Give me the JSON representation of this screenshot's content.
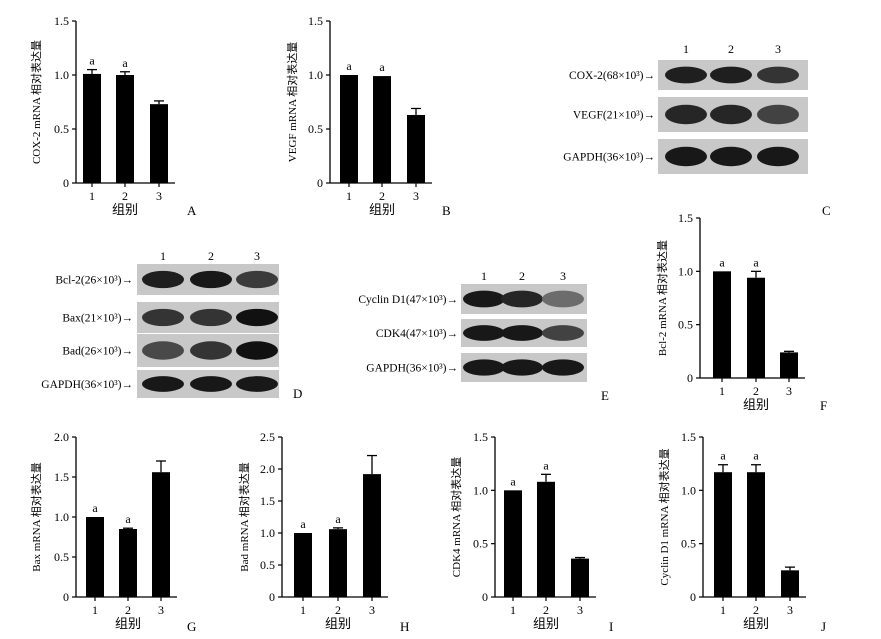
{
  "charts": [
    {
      "panel": "A",
      "type": "bar",
      "ylabel": "COX-2 mRNA 相对表达量",
      "xlabel": "组别",
      "categories": [
        "1",
        "2",
        "3"
      ],
      "values": [
        1.01,
        1.0,
        0.73
      ],
      "errors": [
        0.04,
        0.03,
        0.03
      ],
      "sig": [
        "a",
        "a",
        ""
      ],
      "ylim": [
        0,
        1.5
      ],
      "yticks": [
        "0",
        "0.5",
        "1.0",
        "1.5"
      ],
      "tickvals": [
        0,
        0.5,
        1.0,
        1.5
      ]
    },
    {
      "panel": "B",
      "type": "bar",
      "ylabel": "VEGF mRNA 相对表达量",
      "xlabel": "组别",
      "categories": [
        "1",
        "2",
        "3"
      ],
      "values": [
        1.0,
        0.99,
        0.63
      ],
      "errors": [
        0.0,
        0.0,
        0.06
      ],
      "sig": [
        "a",
        "a",
        ""
      ],
      "ylim": [
        0,
        1.5
      ],
      "yticks": [
        "0",
        "0.5",
        "1.0",
        "1.5"
      ],
      "tickvals": [
        0,
        0.5,
        1.0,
        1.5
      ]
    },
    {
      "panel": "F",
      "type": "bar",
      "ylabel": "Bcl-2 mRNA 相对表达量",
      "xlabel": "组别",
      "categories": [
        "1",
        "2",
        "3"
      ],
      "values": [
        1.0,
        0.94,
        0.24
      ],
      "errors": [
        0.0,
        0.06,
        0.01
      ],
      "sig": [
        "a",
        "a",
        ""
      ],
      "ylim": [
        0,
        1.5
      ],
      "yticks": [
        "0",
        "0.5",
        "1.0",
        "1.5"
      ],
      "tickvals": [
        0,
        0.5,
        1.0,
        1.5
      ]
    },
    {
      "panel": "G",
      "type": "bar",
      "ylabel": "Bax mRNA 相对表达量",
      "xlabel": "组别",
      "categories": [
        "1",
        "2",
        "3"
      ],
      "values": [
        1.0,
        0.85,
        1.56
      ],
      "errors": [
        0.0,
        0.01,
        0.14
      ],
      "sig": [
        "a",
        "a",
        ""
      ],
      "ylim": [
        0,
        2.0
      ],
      "yticks": [
        "0",
        "0.5",
        "1.0",
        "1.5",
        "2.0"
      ],
      "tickvals": [
        0,
        0.5,
        1.0,
        1.5,
        2.0
      ]
    },
    {
      "panel": "H",
      "type": "bar",
      "ylabel": "Bad mRNA 相对表达量",
      "xlabel": "组别",
      "categories": [
        "1",
        "2",
        "3"
      ],
      "values": [
        1.0,
        1.06,
        1.92
      ],
      "errors": [
        0.0,
        0.02,
        0.29
      ],
      "sig": [
        "a",
        "a",
        ""
      ],
      "ylim": [
        0,
        2.5
      ],
      "yticks": [
        "0",
        "0.5",
        "1.0",
        "1.5",
        "2.0",
        "2.5"
      ],
      "tickvals": [
        0,
        0.5,
        1.0,
        1.5,
        2.0,
        2.5
      ]
    },
    {
      "panel": "I",
      "type": "bar",
      "ylabel": "CDK4 mRNA 相对表达量",
      "xlabel": "组别",
      "categories": [
        "1",
        "2",
        "3"
      ],
      "values": [
        1.0,
        1.08,
        0.36
      ],
      "errors": [
        0.0,
        0.07,
        0.01
      ],
      "sig": [
        "a",
        "a",
        ""
      ],
      "ylim": [
        0,
        1.5
      ],
      "yticks": [
        "0",
        "0.5",
        "1.0",
        "1.5"
      ],
      "tickvals": [
        0,
        0.5,
        1.0,
        1.5
      ]
    },
    {
      "panel": "J",
      "type": "bar",
      "ylabel": "Cyclin D1 mRNA 相对表达量",
      "xlabel": "组别",
      "categories": [
        "1",
        "2",
        "3"
      ],
      "values": [
        1.17,
        1.17,
        0.25
      ],
      "errors": [
        0.07,
        0.07,
        0.03
      ],
      "sig": [
        "a",
        "a",
        ""
      ],
      "ylim": [
        0,
        1.5
      ],
      "yticks": [
        "0",
        "0.5",
        "1.0",
        "1.5"
      ],
      "tickvals": [
        0,
        0.5,
        1.0,
        1.5
      ]
    }
  ],
  "blots": [
    {
      "panel": "C",
      "lanes": [
        "1",
        "2",
        "3"
      ],
      "bands": [
        {
          "label": "COX-2(68×10³)→",
          "intensity": [
            0.85,
            0.85,
            0.7
          ]
        },
        {
          "label": "VEGF(21×10³)→",
          "intensity": [
            0.8,
            0.8,
            0.6
          ]
        },
        {
          "label": "GAPDH(36×10³)→",
          "intensity": [
            0.9,
            0.9,
            0.9
          ]
        }
      ]
    },
    {
      "panel": "D",
      "lanes": [
        "1",
        "2",
        "3"
      ],
      "bands": [
        {
          "label": "Bcl-2(26×10³)→",
          "intensity": [
            0.85,
            0.9,
            0.65
          ]
        },
        {
          "label": "Bax(21×10³)→",
          "intensity": [
            0.7,
            0.7,
            0.95
          ]
        },
        {
          "label": "Bad(26×10³)→",
          "intensity": [
            0.55,
            0.7,
            0.95
          ]
        },
        {
          "label": "GAPDH(36×10³)→",
          "intensity": [
            0.9,
            0.9,
            0.9
          ]
        }
      ]
    },
    {
      "panel": "E",
      "lanes": [
        "1",
        "2",
        "3"
      ],
      "bands": [
        {
          "label": "Cyclin D1(47×10³)→",
          "intensity": [
            0.9,
            0.8,
            0.3
          ]
        },
        {
          "label": "CDK4(47×10³)→",
          "intensity": [
            0.9,
            0.9,
            0.6
          ]
        },
        {
          "label": "GAPDH(36×10³)→",
          "intensity": [
            0.9,
            0.9,
            0.9
          ]
        }
      ]
    }
  ]
}
